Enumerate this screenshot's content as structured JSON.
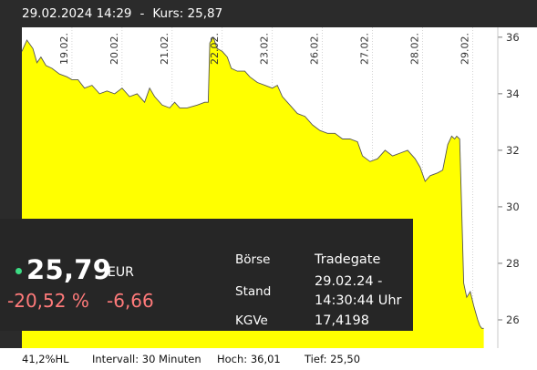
{
  "header": {
    "datetime": "29.02.2024 14:29",
    "separator": "-",
    "price_label": "Kurs: 25,87"
  },
  "quote": {
    "price": "25,79",
    "currency": "EUR",
    "change_percent": "-20,52 %",
    "change_abs": "-6,66",
    "exchange_label": "Börse",
    "exchange_value": "Tradegate",
    "time_label": "Stand",
    "time_value_line1": "29.02.24 -",
    "time_value_line2": "14:30:44 Uhr",
    "pe_label": "KGVe",
    "pe_value": "17,4198"
  },
  "footer": {
    "hl": "41,2%HL",
    "interval": "Intervall: 30 Minuten",
    "high": "Hoch:  36,01",
    "low": "Tief:   25,50"
  },
  "colors": {
    "fill": "#ffff00",
    "line": "#555555",
    "background": "#2b2b2b",
    "negative": "#ff7a7a",
    "live_dot": "#3ddc84"
  },
  "chart_data": {
    "type": "area",
    "title": "",
    "xlabel": "",
    "ylabel": "",
    "ylim": [
      25.0,
      36.35
    ],
    "y_ticks": [
      26,
      28,
      30,
      32,
      34,
      36
    ],
    "x_ticks": [
      "19.02.",
      "20.02.",
      "21.02.",
      "22.02.",
      "23.02.",
      "26.02.",
      "27.02.",
      "28.02.",
      "29.02."
    ],
    "x_range": [
      0,
      9.5
    ],
    "grid": "vertical",
    "series": [
      {
        "points": [
          [
            0.0,
            35.5
          ],
          [
            0.1,
            35.9
          ],
          [
            0.22,
            35.6
          ],
          [
            0.3,
            35.1
          ],
          [
            0.38,
            35.3
          ],
          [
            0.48,
            35.0
          ],
          [
            0.6,
            34.9
          ],
          [
            0.75,
            34.7
          ],
          [
            0.9,
            34.6
          ],
          [
            1.0,
            34.5
          ],
          [
            1.12,
            34.5
          ],
          [
            1.25,
            34.2
          ],
          [
            1.4,
            34.3
          ],
          [
            1.55,
            34.0
          ],
          [
            1.7,
            34.1
          ],
          [
            1.85,
            34.0
          ],
          [
            2.0,
            34.2
          ],
          [
            2.15,
            33.9
          ],
          [
            2.3,
            34.0
          ],
          [
            2.45,
            33.7
          ],
          [
            2.55,
            34.2
          ],
          [
            2.65,
            33.9
          ],
          [
            2.8,
            33.6
          ],
          [
            2.95,
            33.5
          ],
          [
            3.05,
            33.7
          ],
          [
            3.15,
            33.5
          ],
          [
            3.3,
            33.5
          ],
          [
            3.5,
            33.6
          ],
          [
            3.65,
            33.7
          ],
          [
            3.72,
            33.7
          ],
          [
            3.75,
            35.8
          ],
          [
            3.82,
            36.0
          ],
          [
            3.9,
            35.6
          ],
          [
            4.0,
            35.5
          ],
          [
            4.1,
            35.3
          ],
          [
            4.18,
            34.9
          ],
          [
            4.3,
            34.8
          ],
          [
            4.45,
            34.8
          ],
          [
            4.55,
            34.6
          ],
          [
            4.7,
            34.4
          ],
          [
            4.85,
            34.3
          ],
          [
            5.0,
            34.2
          ],
          [
            5.1,
            34.3
          ],
          [
            5.2,
            33.9
          ],
          [
            5.35,
            33.6
          ],
          [
            5.5,
            33.3
          ],
          [
            5.65,
            33.2
          ],
          [
            5.8,
            32.9
          ],
          [
            5.95,
            32.7
          ],
          [
            6.1,
            32.6
          ],
          [
            6.25,
            32.6
          ],
          [
            6.4,
            32.4
          ],
          [
            6.55,
            32.4
          ],
          [
            6.7,
            32.3
          ],
          [
            6.8,
            31.8
          ],
          [
            6.95,
            31.6
          ],
          [
            7.1,
            31.7
          ],
          [
            7.25,
            32.0
          ],
          [
            7.4,
            31.8
          ],
          [
            7.55,
            31.9
          ],
          [
            7.7,
            32.0
          ],
          [
            7.85,
            31.7
          ],
          [
            7.95,
            31.4
          ],
          [
            8.05,
            30.9
          ],
          [
            8.15,
            31.1
          ],
          [
            8.3,
            31.2
          ],
          [
            8.4,
            31.3
          ],
          [
            8.5,
            32.2
          ],
          [
            8.58,
            32.5
          ],
          [
            8.64,
            32.4
          ],
          [
            8.68,
            32.5
          ],
          [
            8.74,
            32.4
          ],
          [
            8.78,
            29.9
          ],
          [
            8.82,
            27.3
          ],
          [
            8.88,
            26.8
          ],
          [
            8.95,
            27.0
          ],
          [
            9.02,
            26.5
          ],
          [
            9.1,
            26.0
          ],
          [
            9.14,
            25.8
          ],
          [
            9.18,
            25.7
          ],
          [
            9.22,
            25.7
          ]
        ]
      }
    ]
  }
}
